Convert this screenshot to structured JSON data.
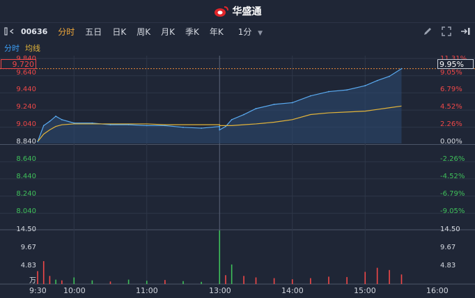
{
  "app": {
    "brand": "华盛通"
  },
  "toolbar": {
    "stock_code": "00636",
    "tabs": [
      {
        "label": "分时",
        "active": true
      },
      {
        "label": "五日",
        "active": false
      },
      {
        "label": "日K",
        "active": false
      },
      {
        "label": "周K",
        "active": false
      },
      {
        "label": "月K",
        "active": false
      },
      {
        "label": "季K",
        "active": false
      },
      {
        "label": "年K",
        "active": false
      }
    ],
    "interval_label": "1分",
    "icons": [
      "collapse-left-icon",
      "pen-icon",
      "fullscreen-icon",
      "export-icon"
    ]
  },
  "subtabs": {
    "minute": "分时",
    "average": "均线"
  },
  "price_axis": {
    "left": [
      "9.840",
      "9.640",
      "9.440",
      "9.240",
      "9.040",
      "8.840",
      "8.640",
      "8.440",
      "8.240",
      "8.040"
    ],
    "right": [
      "11.31%",
      "9.05%",
      "6.79%",
      "4.52%",
      "2.26%",
      "0.00%",
      "-2.26%",
      "-4.52%",
      "-6.79%",
      "-9.05%"
    ],
    "current_price": "9.720",
    "current_change": "9.95%"
  },
  "volume_axis": {
    "left": [
      "14.50",
      "9.67",
      "4.83",
      "万"
    ],
    "right": [
      "14.50",
      "9.67",
      "4.83"
    ]
  },
  "time_axis": [
    "9:30",
    "10:00",
    "11:00",
    "13:00",
    "14:00",
    "15:00",
    "16:00"
  ],
  "colors": {
    "up": "#f04848",
    "down": "#3fc05a",
    "line": "#5aaaf0",
    "avg": "#e4b53a",
    "background": "#1f2636"
  },
  "chart_data": {
    "type": "line",
    "title": "",
    "xlabel": "",
    "ylabel": "",
    "ylim": [
      7.84,
      9.84
    ],
    "prev_close": 8.84,
    "x": [
      "9:30",
      "9:35",
      "9:40",
      "9:45",
      "9:50",
      "10:00",
      "10:15",
      "10:30",
      "10:45",
      "11:00",
      "11:15",
      "11:30",
      "11:45",
      "12:00",
      "13:00",
      "13:05",
      "13:10",
      "13:20",
      "13:30",
      "13:45",
      "14:00",
      "14:15",
      "14:30",
      "14:45",
      "15:00",
      "15:10",
      "15:20",
      "15:30"
    ],
    "series": [
      {
        "values": [
          8.86,
          9.05,
          9.1,
          9.16,
          9.12,
          9.08,
          9.08,
          9.06,
          9.06,
          9.05,
          9.05,
          9.03,
          9.02,
          9.04,
          9.0,
          9.04,
          9.12,
          9.18,
          9.25,
          9.3,
          9.32,
          9.4,
          9.45,
          9.47,
          9.52,
          9.58,
          9.63,
          9.72
        ]
      },
      {
        "values": [
          8.86,
          8.95,
          9.0,
          9.04,
          9.06,
          9.07,
          9.07,
          9.07,
          9.07,
          9.07,
          9.06,
          9.06,
          9.06,
          9.06,
          9.05,
          9.05,
          9.05,
          9.06,
          9.07,
          9.09,
          9.12,
          9.18,
          9.2,
          9.21,
          9.22,
          9.24,
          9.26,
          9.28
        ]
      }
    ],
    "volume": {
      "ylim": [
        0,
        14.5
      ],
      "x": [
        "9:30",
        "9:35",
        "9:40",
        "9:45",
        "9:50",
        "10:00",
        "10:15",
        "10:30",
        "10:45",
        "11:00",
        "11:15",
        "11:30",
        "11:45",
        "12:00",
        "13:00",
        "13:05",
        "13:10",
        "13:20",
        "13:30",
        "13:45",
        "14:00",
        "14:15",
        "14:30",
        "14:45",
        "15:00",
        "15:10",
        "15:20",
        "15:30"
      ],
      "values": [
        3.5,
        6.2,
        2.2,
        1.2,
        1.0,
        1.8,
        1.0,
        0.7,
        1.2,
        0.9,
        1.1,
        0.8,
        0.6,
        0.9,
        14.5,
        2.4,
        5.3,
        2.2,
        1.8,
        1.6,
        1.3,
        1.6,
        2.0,
        1.9,
        3.3,
        4.4,
        3.8,
        2.6
      ],
      "direction": [
        "up",
        "up",
        "up",
        "down",
        "up",
        "down",
        "down",
        "up",
        "down",
        "down",
        "up",
        "down",
        "down",
        "up",
        "down",
        "up",
        "green",
        "up",
        "up",
        "up",
        "up",
        "up",
        "up",
        "up",
        "up",
        "up",
        "up",
        "up"
      ]
    }
  }
}
